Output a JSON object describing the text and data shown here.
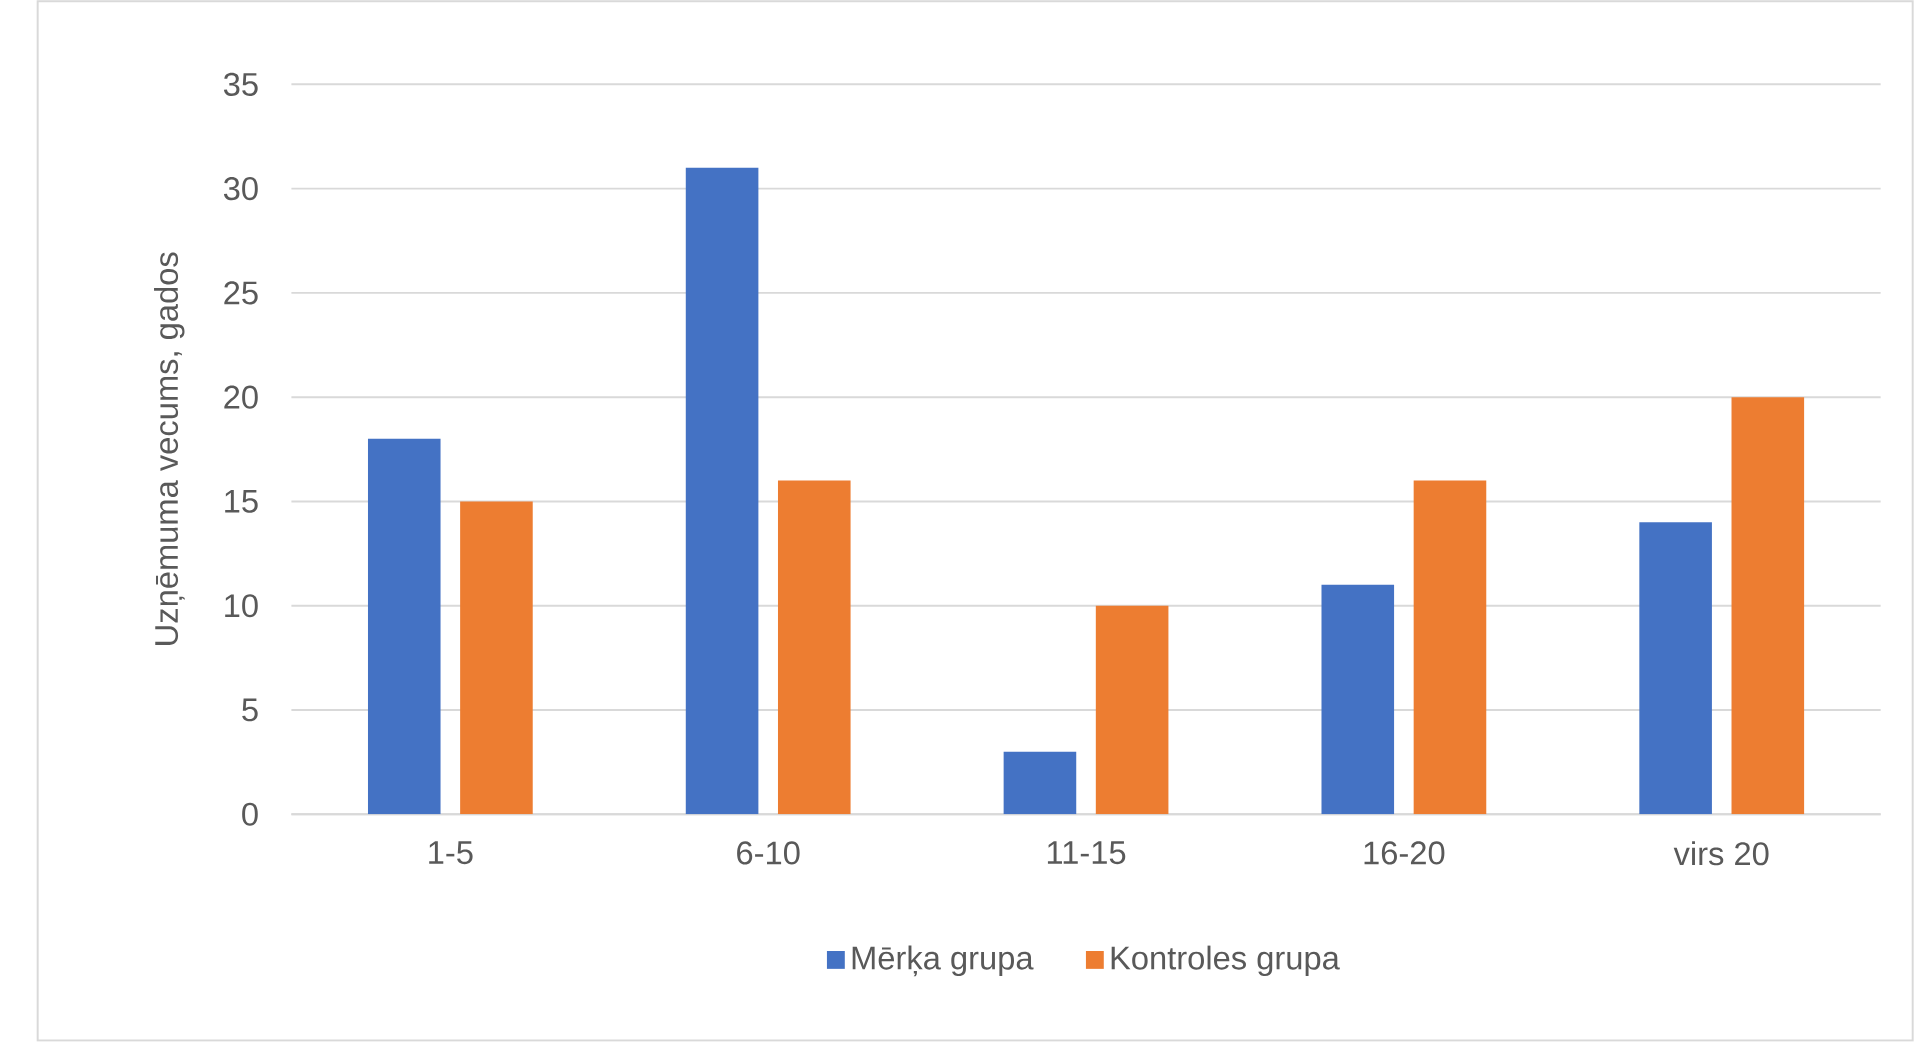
{
  "chart_data": {
    "type": "bar",
    "ylabel": "Uzņēmuma vecums, gados",
    "categories": [
      "1-5",
      "6-10",
      "11-15",
      "16-20",
      "virs 20"
    ],
    "series": [
      {
        "name": "Mērķa grupa",
        "color": "#4472c4",
        "values": [
          18,
          31,
          3,
          11,
          14
        ]
      },
      {
        "name": "Kontroles grupa",
        "color": "#ed7d31",
        "values": [
          15,
          16,
          10,
          16,
          20
        ]
      }
    ],
    "ylim": [
      0,
      35
    ],
    "yticks": [
      0,
      5,
      10,
      15,
      20,
      25,
      30,
      35
    ],
    "grid": "y",
    "legend": "bottom"
  }
}
